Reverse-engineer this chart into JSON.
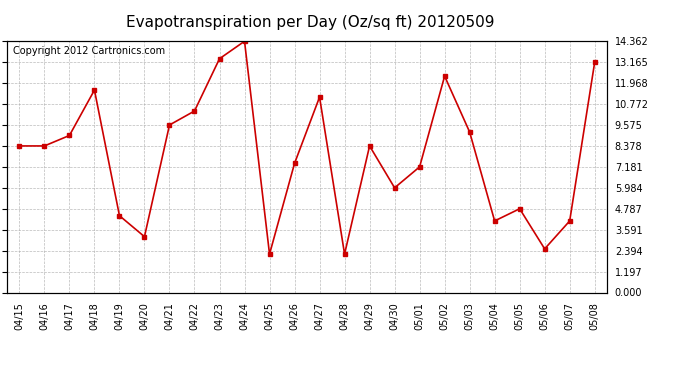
{
  "title": "Evapotranspiration per Day (Oz/sq ft) 20120509",
  "copyright": "Copyright 2012 Cartronics.com",
  "x_labels": [
    "04/15",
    "04/16",
    "04/17",
    "04/18",
    "04/19",
    "04/20",
    "04/21",
    "04/22",
    "04/23",
    "04/24",
    "04/25",
    "04/26",
    "04/27",
    "04/28",
    "04/29",
    "04/30",
    "05/01",
    "05/02",
    "05/03",
    "05/04",
    "05/05",
    "05/06",
    "05/07",
    "05/08"
  ],
  "y_values": [
    8.378,
    8.378,
    8.976,
    11.571,
    4.39,
    3.192,
    9.575,
    10.374,
    13.364,
    14.362,
    2.194,
    7.381,
    11.17,
    2.194,
    8.378,
    5.984,
    7.181,
    12.368,
    9.175,
    4.09,
    4.787,
    2.494,
    4.09,
    13.165
  ],
  "line_color": "#cc0000",
  "marker": "s",
  "marker_size": 3,
  "bg_color": "#ffffff",
  "grid_color": "#aaaaaa",
  "y_ticks": [
    0.0,
    1.197,
    2.394,
    3.591,
    4.787,
    5.984,
    7.181,
    8.378,
    9.575,
    10.772,
    11.968,
    13.165,
    14.362
  ],
  "ylim": [
    0.0,
    14.362
  ],
  "title_fontsize": 11,
  "copyright_fontsize": 7,
  "tick_fontsize": 7
}
